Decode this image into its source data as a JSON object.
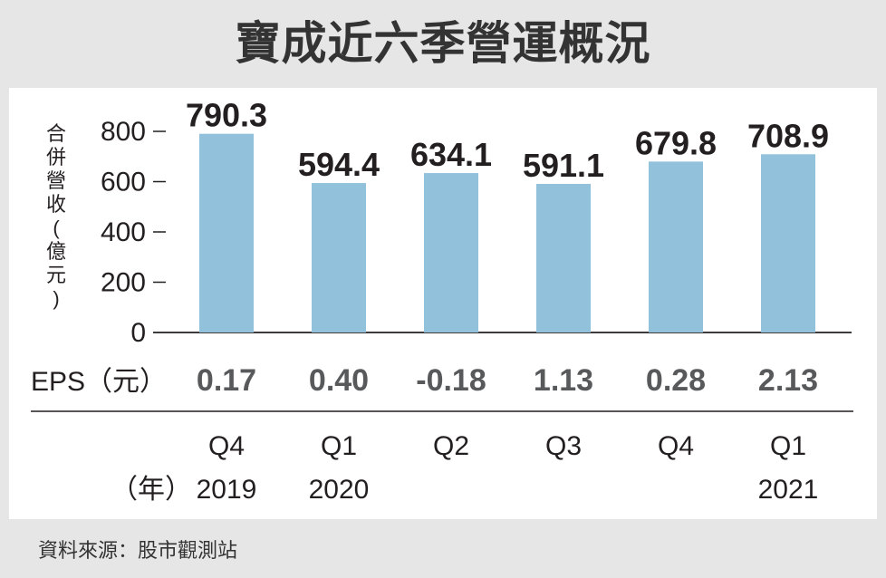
{
  "title": "寶成近六季營運概況",
  "source": "資料來源：股市觀測站",
  "colors": {
    "bar": "#92c1dc",
    "background": "#e6e6e6",
    "panel": "#ffffff",
    "text": "#231f20",
    "eps": "#58595b"
  },
  "chart_data": {
    "type": "bar",
    "title": "寶成近六季營運概況",
    "ylabel": "合併營收(億元)",
    "ylim": [
      0,
      800
    ],
    "yticks": [
      0,
      200,
      400,
      600,
      800
    ],
    "grid": false,
    "categories": [
      "Q4 2019",
      "Q1 2020",
      "Q2",
      "Q3",
      "Q4",
      "Q1 2021"
    ],
    "quarter_labels": [
      "Q4",
      "Q1",
      "Q2",
      "Q3",
      "Q4",
      "Q1"
    ],
    "year_labels": [
      "2019",
      "2020",
      "",
      "",
      "",
      "2021"
    ],
    "xlabel": "（年）",
    "values": [
      790.3,
      594.4,
      634.1,
      591.1,
      679.8,
      708.9
    ],
    "value_labels": [
      "790.3",
      "594.4",
      "634.1",
      "591.1",
      "679.8",
      "708.9"
    ],
    "eps_label": "EPS（元）",
    "eps_labels": [
      "0.17",
      "0.40",
      "-0.18",
      "1.13",
      "0.28",
      "2.13"
    ]
  }
}
